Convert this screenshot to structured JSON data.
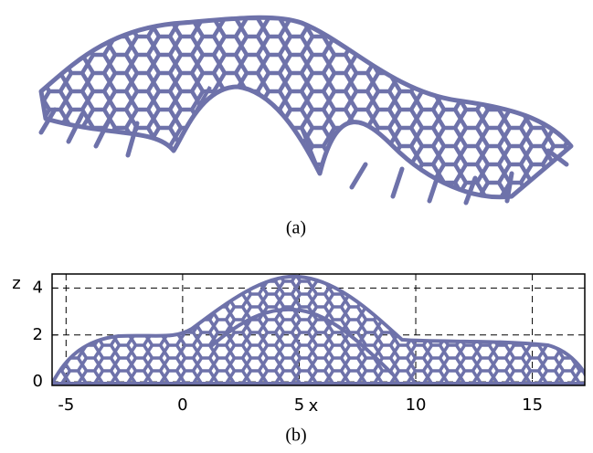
{
  "panel_a": {
    "label": "(a)"
  },
  "panel_b": {
    "label": "(b)",
    "x_label": "x",
    "z_label": "z",
    "xlim": [
      -5.6,
      17.25
    ],
    "zlim": [
      -0.15,
      4.6
    ],
    "xticks": [
      -5,
      0,
      5,
      10,
      15
    ],
    "zticks": [
      0,
      2,
      4
    ],
    "grid": true
  }
}
